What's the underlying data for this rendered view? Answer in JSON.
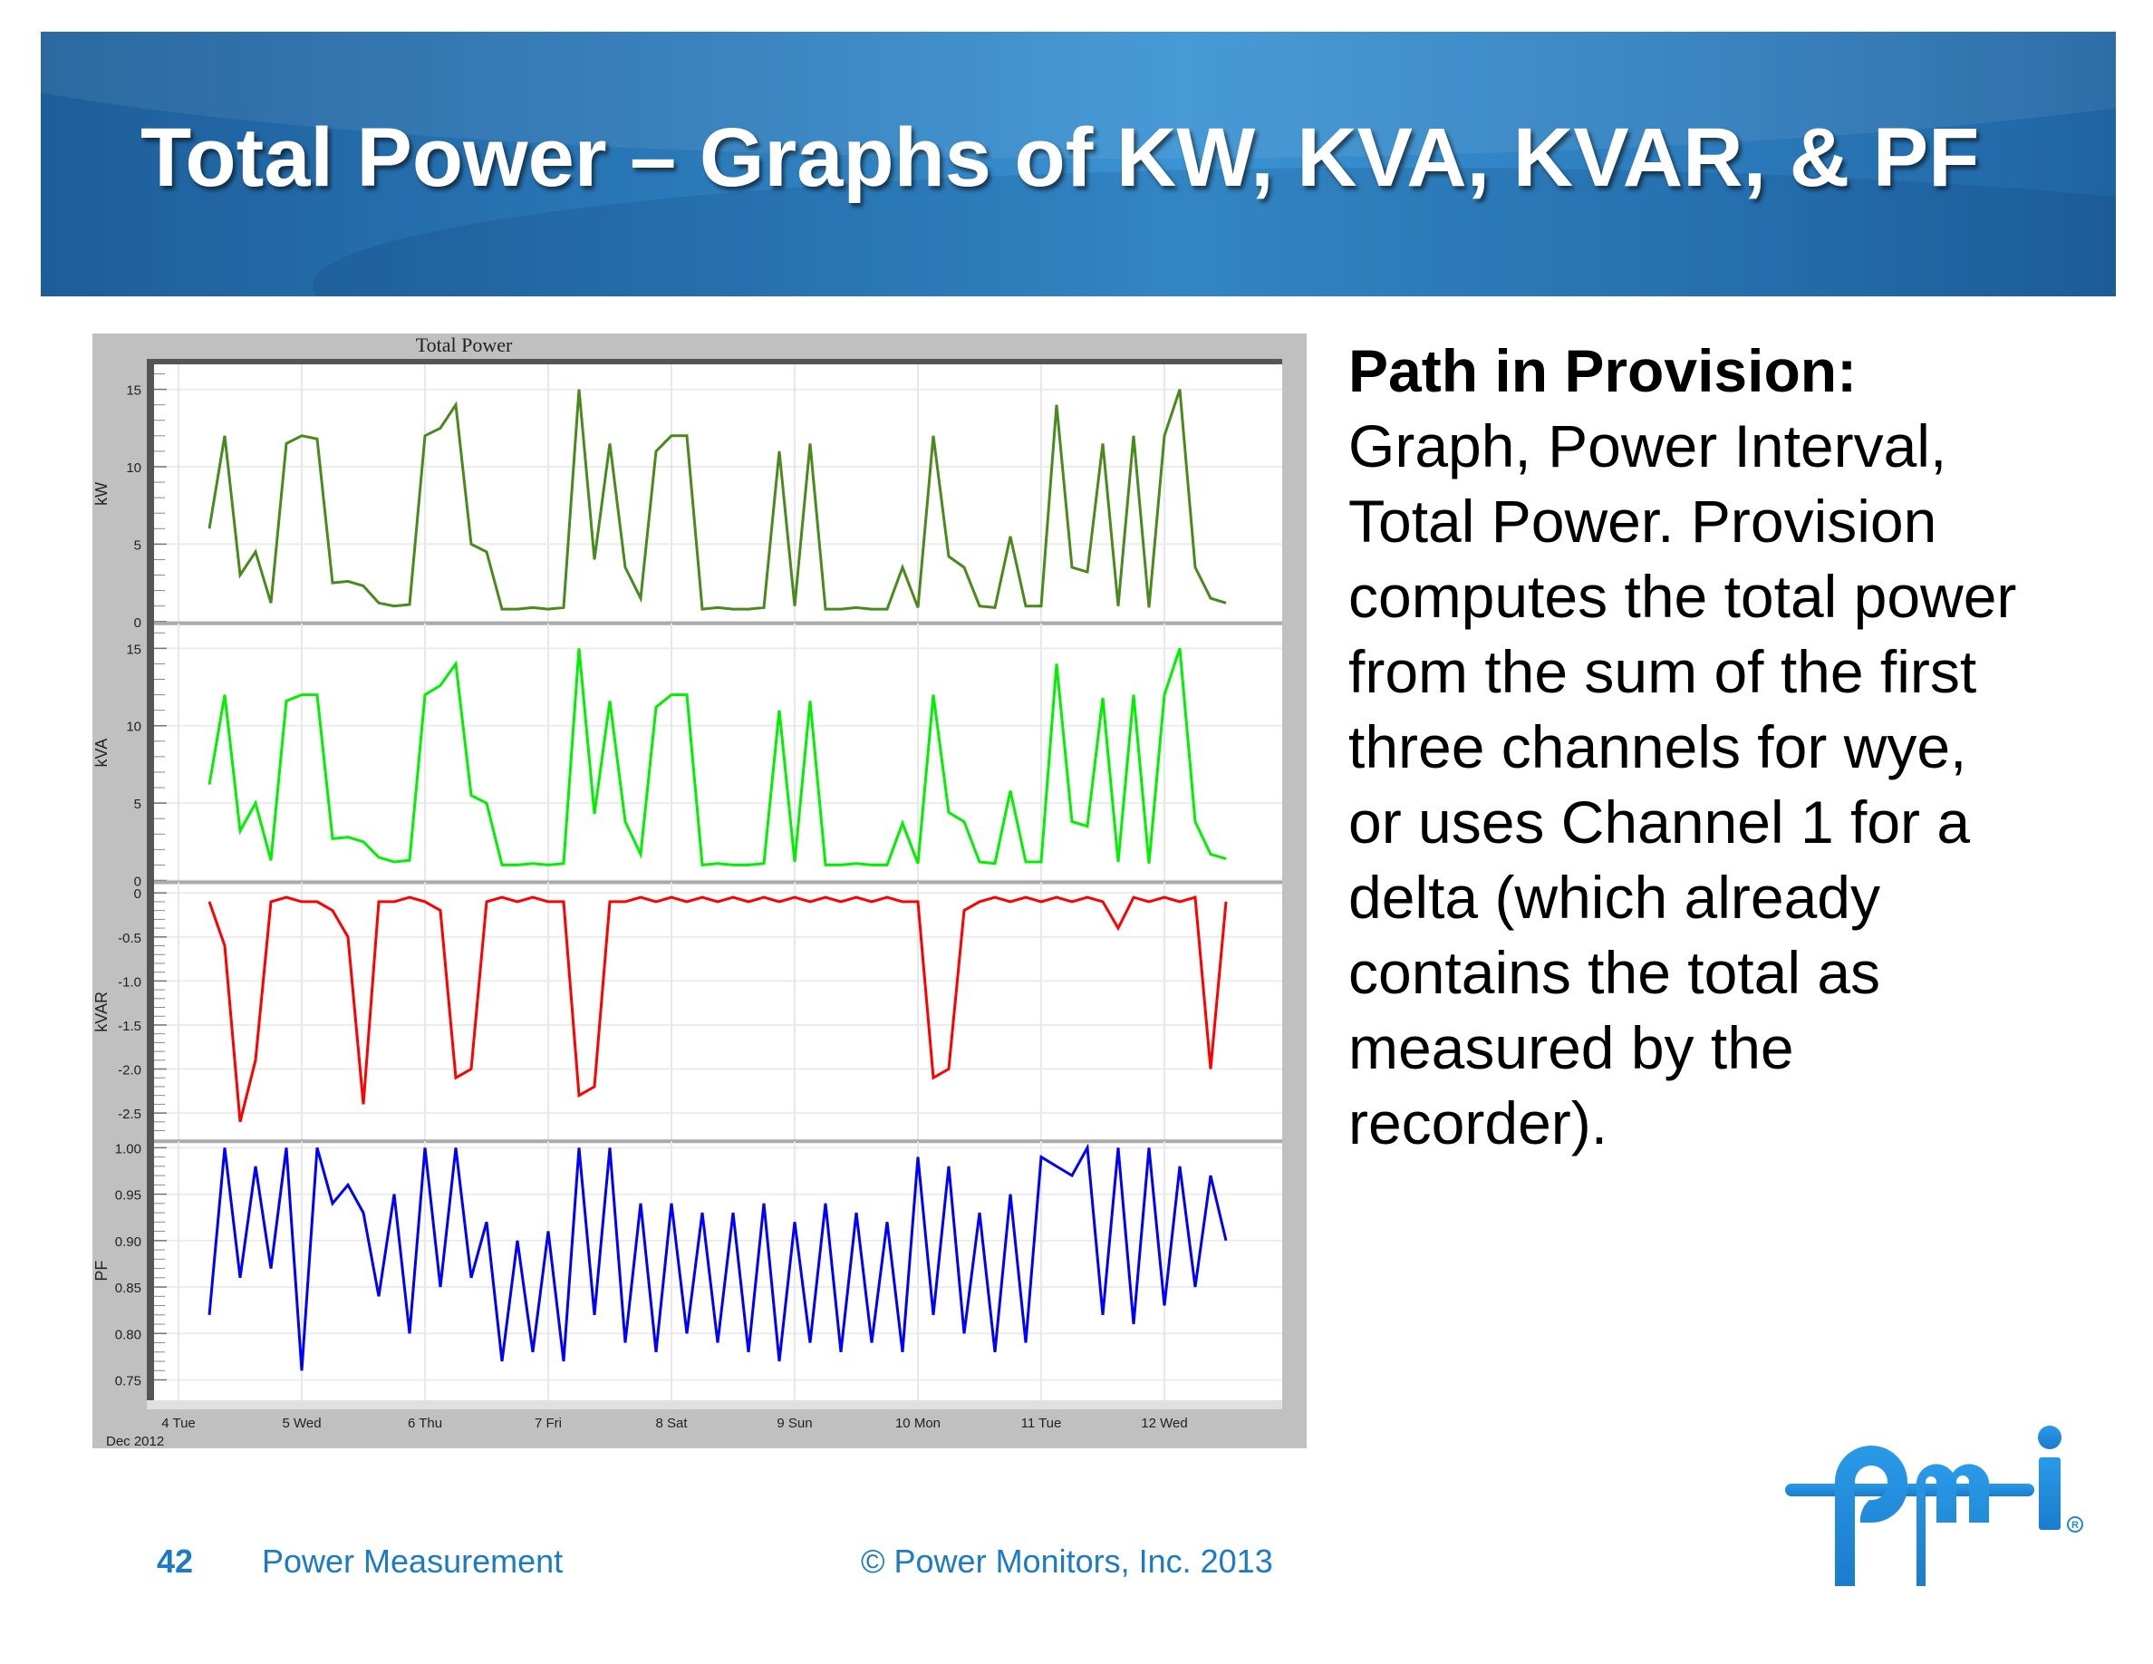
{
  "slide": {
    "title": "Total Power – Graphs of KW, KVA, KVAR, & PF",
    "side_heading": "Path in Provision:",
    "side_lines": [
      "Graph, Power Interval,",
      "Total Power. Provision",
      "computes the total power",
      "from the sum of the first",
      "three channels for wye,",
      "or uses Channel 1 for a",
      "delta (which already",
      "contains the total as",
      "measured by the",
      "recorder)."
    ],
    "footer": {
      "page_number": "42",
      "section": "Power Measurement",
      "copyright": "© Power Monitors, Inc. 2013"
    },
    "logo_text": "pmi",
    "colors": {
      "banner": "#2a78b8",
      "footer_text": "#1b7bc4",
      "logo": "#1e8ad6"
    }
  },
  "chart_data": {
    "type": "line",
    "title": "Total Power",
    "x_start": "2012-12-04 06:00",
    "x_interval_hours": 3,
    "x_tick_labels": [
      "4 Tue",
      "5 Wed",
      "6 Thu",
      "7 Fri",
      "8 Sat",
      "9 Sun",
      "10 Mon",
      "11 Tue",
      "12 Wed"
    ],
    "x_sublabel": "Dec 2012",
    "grid": true,
    "series": [
      {
        "name": "kW",
        "color": "#4a8a1c",
        "ylim": [
          0,
          16.5
        ],
        "ticks": [
          "0",
          "5",
          "10",
          "15"
        ],
        "tick_values": [
          0,
          5,
          10,
          15
        ],
        "values": [
          6,
          12,
          3,
          4.5,
          1.2,
          11.5,
          12,
          11.8,
          2.5,
          2.6,
          2.3,
          1.2,
          1.0,
          1.1,
          12,
          12.5,
          14,
          5,
          4.5,
          0.8,
          0.8,
          0.9,
          0.8,
          0.9,
          15,
          4,
          11.5,
          3.5,
          1.5,
          11,
          12,
          12,
          0.8,
          0.9,
          0.8,
          0.8,
          0.9,
          11,
          1,
          11.5,
          0.8,
          0.8,
          0.9,
          0.8,
          0.8,
          3.5,
          0.9,
          12,
          4.2,
          3.5,
          1,
          0.9,
          5.5,
          1,
          1,
          14,
          3.5,
          3.2,
          11.5,
          1,
          12,
          0.9,
          12,
          15,
          3.5,
          1.5,
          1.2
        ]
      },
      {
        "name": "kVA",
        "color": "#00f000",
        "ylim": [
          0,
          16.5
        ],
        "ticks": [
          "0",
          "5",
          "10",
          "15"
        ],
        "tick_values": [
          0,
          5,
          10,
          15
        ],
        "values": [
          6.2,
          12,
          3.2,
          5,
          1.3,
          11.6,
          12,
          12,
          2.7,
          2.8,
          2.5,
          1.5,
          1.2,
          1.3,
          12,
          12.6,
          14,
          5.5,
          5,
          1,
          1,
          1.1,
          1,
          1.1,
          15,
          4.3,
          11.6,
          3.8,
          1.7,
          11.2,
          12,
          12,
          1,
          1.1,
          1,
          1,
          1.1,
          11,
          1.2,
          11.6,
          1,
          1,
          1.1,
          1,
          1,
          3.7,
          1.1,
          12,
          4.4,
          3.8,
          1.2,
          1.1,
          5.8,
          1.2,
          1.2,
          14,
          3.8,
          3.5,
          11.8,
          1.2,
          12,
          1.1,
          12,
          15,
          3.8,
          1.7,
          1.4
        ]
      },
      {
        "name": "kVAR",
        "color": "#ff0000",
        "ylim": [
          -2.8,
          0.1
        ],
        "ticks": [
          "0",
          "-0.5",
          "-1.0",
          "-1.5",
          "-2.0",
          "-2.5"
        ],
        "tick_values": [
          0,
          -0.5,
          -1.0,
          -1.5,
          -2.0,
          -2.5
        ],
        "values": [
          -0.1,
          -0.6,
          -2.6,
          -1.9,
          -0.1,
          -0.05,
          -0.1,
          -0.1,
          -0.2,
          -0.5,
          -2.4,
          -0.1,
          -0.1,
          -0.05,
          -0.1,
          -0.2,
          -2.1,
          -2.0,
          -0.1,
          -0.05,
          -0.1,
          -0.05,
          -0.1,
          -0.1,
          -2.3,
          -2.2,
          -0.1,
          -0.1,
          -0.05,
          -0.1,
          -0.05,
          -0.1,
          -0.05,
          -0.1,
          -0.05,
          -0.1,
          -0.05,
          -0.1,
          -0.05,
          -0.1,
          -0.05,
          -0.1,
          -0.05,
          -0.1,
          -0.05,
          -0.1,
          -0.1,
          -2.1,
          -2.0,
          -0.2,
          -0.1,
          -0.05,
          -0.1,
          -0.05,
          -0.1,
          -0.05,
          -0.1,
          -0.05,
          -0.1,
          -0.4,
          -0.05,
          -0.1,
          -0.05,
          -0.1,
          -0.05,
          -2.0,
          -0.1
        ]
      },
      {
        "name": "PF",
        "color": "#0000ff",
        "ylim": [
          0.73,
          1.005
        ],
        "ticks": [
          "0.75",
          "0.80",
          "0.85",
          "0.90",
          "0.95",
          "1.00"
        ],
        "tick_values": [
          0.75,
          0.8,
          0.85,
          0.9,
          0.95,
          1.0
        ],
        "values": [
          0.82,
          1.0,
          0.86,
          0.98,
          0.87,
          1.0,
          0.76,
          1.0,
          0.94,
          0.96,
          0.93,
          0.84,
          0.95,
          0.8,
          1.0,
          0.85,
          1.0,
          0.86,
          0.92,
          0.77,
          0.9,
          0.78,
          0.91,
          0.77,
          1.0,
          0.82,
          1.0,
          0.79,
          0.94,
          0.78,
          0.94,
          0.8,
          0.93,
          0.79,
          0.93,
          0.78,
          0.94,
          0.77,
          0.92,
          0.79,
          0.94,
          0.78,
          0.93,
          0.79,
          0.92,
          0.78,
          0.99,
          0.82,
          0.98,
          0.8,
          0.93,
          0.78,
          0.95,
          0.79,
          0.99,
          0.98,
          0.97,
          1.0,
          0.82,
          1.0,
          0.81,
          1.0,
          0.83,
          0.98,
          0.85,
          0.97,
          0.9
        ]
      }
    ]
  }
}
